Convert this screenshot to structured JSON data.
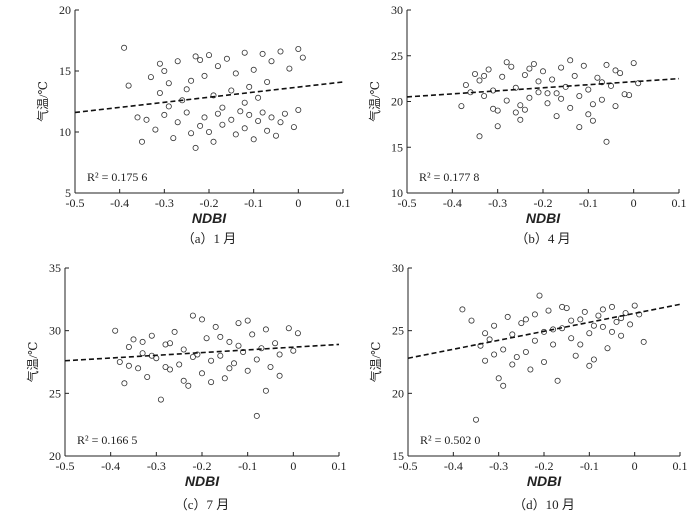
{
  "chart_data": [
    {
      "type": "scatter",
      "caption": "（a）1 月",
      "xlabel": "NDBI",
      "ylabel": "气温/℃",
      "xlim": [
        -0.5,
        0.1
      ],
      "ylim": [
        5,
        20
      ],
      "xticks": [
        -0.5,
        -0.4,
        -0.3,
        -0.2,
        -0.1,
        0,
        0.1
      ],
      "xtick_labels": [
        "-0.5",
        "-0.4",
        "-0.3",
        "-0.2",
        "-0.1",
        "0",
        "0.1"
      ],
      "yticks": [
        5,
        10,
        15,
        20
      ],
      "r2_label": "R² = 0.175 6",
      "trend": {
        "x": [
          -0.5,
          0.1
        ],
        "y": [
          11.6,
          14.1
        ]
      },
      "points": [
        [
          -0.39,
          16.9
        ],
        [
          -0.38,
          13.8
        ],
        [
          -0.36,
          11.2
        ],
        [
          -0.33,
          14.5
        ],
        [
          -0.31,
          13.2
        ],
        [
          -0.3,
          15.0
        ],
        [
          -0.29,
          14.0
        ],
        [
          -0.27,
          15.8
        ],
        [
          -0.25,
          13.5
        ],
        [
          -0.23,
          16.2
        ],
        [
          -0.22,
          15.9
        ],
        [
          -0.21,
          14.6
        ],
        [
          -0.2,
          16.3
        ],
        [
          -0.19,
          13.0
        ],
        [
          -0.18,
          15.4
        ],
        [
          -0.16,
          16.0
        ],
        [
          -0.14,
          14.8
        ],
        [
          -0.12,
          16.5
        ],
        [
          -0.1,
          15.1
        ],
        [
          -0.08,
          16.4
        ],
        [
          -0.06,
          15.8
        ],
        [
          -0.04,
          16.6
        ],
        [
          -0.02,
          15.2
        ],
        [
          0.0,
          16.8
        ],
        [
          0.01,
          16.1
        ],
        [
          -0.26,
          12.6
        ],
        [
          -0.17,
          12.0
        ],
        [
          -0.09,
          12.8
        ],
        [
          -0.34,
          11.0
        ],
        [
          -0.32,
          10.2
        ],
        [
          -0.3,
          11.4
        ],
        [
          -0.28,
          9.5
        ],
        [
          -0.27,
          10.8
        ],
        [
          -0.25,
          11.6
        ],
        [
          -0.24,
          9.9
        ],
        [
          -0.23,
          8.7
        ],
        [
          -0.22,
          10.5
        ],
        [
          -0.21,
          11.2
        ],
        [
          -0.2,
          10.0
        ],
        [
          -0.19,
          9.2
        ],
        [
          -0.18,
          11.5
        ],
        [
          -0.17,
          10.6
        ],
        [
          -0.15,
          11.0
        ],
        [
          -0.14,
          9.8
        ],
        [
          -0.13,
          11.7
        ],
        [
          -0.12,
          10.3
        ],
        [
          -0.11,
          11.4
        ],
        [
          -0.1,
          9.4
        ],
        [
          -0.09,
          10.9
        ],
        [
          -0.08,
          11.6
        ],
        [
          -0.07,
          10.1
        ],
        [
          -0.06,
          11.2
        ],
        [
          -0.05,
          9.7
        ],
        [
          -0.04,
          10.8
        ],
        [
          -0.03,
          11.5
        ],
        [
          -0.01,
          10.4
        ],
        [
          0.0,
          11.8
        ],
        [
          -0.35,
          9.2
        ],
        [
          -0.29,
          12.1
        ],
        [
          -0.12,
          12.4
        ],
        [
          -0.24,
          14.2
        ],
        [
          -0.15,
          13.4
        ],
        [
          -0.07,
          14.1
        ],
        [
          -0.31,
          15.6
        ],
        [
          -0.11,
          13.7
        ]
      ]
    },
    {
      "type": "scatter",
      "caption": "（b）4 月",
      "xlabel": "NDBI",
      "ylabel": "气温/℃",
      "xlim": [
        -0.5,
        0.1
      ],
      "ylim": [
        10,
        30
      ],
      "xticks": [
        -0.5,
        -0.4,
        -0.3,
        -0.2,
        -0.1,
        0,
        0.1
      ],
      "xtick_labels": [
        "-0.5",
        "-0.4",
        "-0.3",
        "-0.2",
        "-0.1",
        "0",
        "0.1"
      ],
      "yticks": [
        10,
        15,
        20,
        25,
        30
      ],
      "r2_label": "R² = 0.177 8",
      "trend": {
        "x": [
          -0.5,
          0.1
        ],
        "y": [
          20.5,
          22.5
        ]
      },
      "points": [
        [
          -0.38,
          19.5
        ],
        [
          -0.37,
          21.8
        ],
        [
          -0.35,
          23.0
        ],
        [
          -0.34,
          22.3
        ],
        [
          -0.33,
          20.6
        ],
        [
          -0.32,
          23.5
        ],
        [
          -0.31,
          21.2
        ],
        [
          -0.3,
          19.0
        ],
        [
          -0.29,
          22.7
        ],
        [
          -0.28,
          20.1
        ],
        [
          -0.27,
          23.8
        ],
        [
          -0.26,
          21.5
        ],
        [
          -0.25,
          19.6
        ],
        [
          -0.24,
          22.9
        ],
        [
          -0.23,
          20.4
        ],
        [
          -0.22,
          24.1
        ],
        [
          -0.21,
          21.0
        ],
        [
          -0.2,
          23.3
        ],
        [
          -0.19,
          19.8
        ],
        [
          -0.18,
          22.4
        ],
        [
          -0.17,
          20.9
        ],
        [
          -0.16,
          23.7
        ],
        [
          -0.15,
          21.6
        ],
        [
          -0.14,
          19.3
        ],
        [
          -0.13,
          22.8
        ],
        [
          -0.12,
          20.6
        ],
        [
          -0.11,
          23.9
        ],
        [
          -0.1,
          21.3
        ],
        [
          -0.09,
          19.7
        ],
        [
          -0.08,
          22.6
        ],
        [
          -0.07,
          20.2
        ],
        [
          -0.06,
          24.0
        ],
        [
          -0.05,
          21.7
        ],
        [
          -0.04,
          19.5
        ],
        [
          -0.03,
          23.1
        ],
        [
          -0.02,
          20.8
        ],
        [
          0.0,
          24.2
        ],
        [
          0.01,
          22.0
        ],
        [
          -0.34,
          16.2
        ],
        [
          -0.3,
          17.3
        ],
        [
          -0.25,
          18.0
        ],
        [
          -0.12,
          17.2
        ],
        [
          -0.06,
          15.6
        ],
        [
          -0.26,
          18.8
        ],
        [
          -0.17,
          18.4
        ],
        [
          -0.09,
          17.9
        ],
        [
          -0.36,
          21.0
        ],
        [
          -0.21,
          22.2
        ],
        [
          -0.14,
          24.5
        ],
        [
          -0.28,
          24.3
        ],
        [
          -0.19,
          20.9
        ],
        [
          -0.07,
          22.1
        ],
        [
          -0.31,
          19.2
        ],
        [
          -0.23,
          23.6
        ],
        [
          -0.1,
          18.6
        ],
        [
          -0.04,
          23.4
        ],
        [
          -0.16,
          20.3
        ],
        [
          -0.33,
          22.8
        ],
        [
          -0.24,
          19.1
        ],
        [
          -0.01,
          20.7
        ]
      ]
    },
    {
      "type": "scatter",
      "caption": "（c）7 月",
      "xlabel": "NDBI",
      "ylabel": "气温/℃",
      "xlim": [
        -0.5,
        0.1
      ],
      "ylim": [
        20,
        35
      ],
      "xticks": [
        -0.5,
        -0.4,
        -0.3,
        -0.2,
        -0.1,
        0,
        0.1
      ],
      "xtick_labels": [
        "-0.5",
        "-0.4",
        "-0.3",
        "-0.2",
        "-0.1",
        "0",
        "0.1"
      ],
      "yticks": [
        20,
        25,
        30,
        35
      ],
      "r2_label": "R² = 0.166 5",
      "trend": {
        "x": [
          -0.5,
          0.1
        ],
        "y": [
          27.6,
          28.9
        ]
      },
      "points": [
        [
          -0.39,
          30.0
        ],
        [
          -0.38,
          27.5
        ],
        [
          -0.37,
          25.8
        ],
        [
          -0.36,
          28.7
        ],
        [
          -0.35,
          29.3
        ],
        [
          -0.34,
          27.0
        ],
        [
          -0.33,
          28.2
        ],
        [
          -0.32,
          26.3
        ],
        [
          -0.31,
          29.6
        ],
        [
          -0.3,
          27.8
        ],
        [
          -0.29,
          24.5
        ],
        [
          -0.28,
          28.9
        ],
        [
          -0.27,
          26.9
        ],
        [
          -0.26,
          29.9
        ],
        [
          -0.25,
          27.3
        ],
        [
          -0.24,
          28.5
        ],
        [
          -0.23,
          25.6
        ],
        [
          -0.22,
          31.2
        ],
        [
          -0.21,
          28.1
        ],
        [
          -0.2,
          26.6
        ],
        [
          -0.19,
          29.4
        ],
        [
          -0.18,
          27.6
        ],
        [
          -0.17,
          30.3
        ],
        [
          -0.16,
          28.0
        ],
        [
          -0.15,
          26.2
        ],
        [
          -0.14,
          29.1
        ],
        [
          -0.13,
          27.4
        ],
        [
          -0.12,
          30.6
        ],
        [
          -0.11,
          28.3
        ],
        [
          -0.1,
          26.8
        ],
        [
          -0.09,
          29.7
        ],
        [
          -0.08,
          23.2
        ],
        [
          -0.07,
          28.6
        ],
        [
          -0.06,
          30.1
        ],
        [
          -0.05,
          27.1
        ],
        [
          -0.04,
          29.0
        ],
        [
          -0.03,
          26.4
        ],
        [
          -0.01,
          30.2
        ],
        [
          0.0,
          28.4
        ],
        [
          0.01,
          29.8
        ],
        [
          -0.06,
          25.2
        ],
        [
          -0.33,
          29.1
        ],
        [
          -0.27,
          29.0
        ],
        [
          -0.2,
          30.9
        ],
        [
          -0.14,
          27.0
        ],
        [
          -0.1,
          30.8
        ],
        [
          -0.24,
          26.0
        ],
        [
          -0.31,
          28.0
        ],
        [
          -0.16,
          29.5
        ],
        [
          -0.08,
          27.7
        ],
        [
          -0.36,
          27.2
        ],
        [
          -0.22,
          27.9
        ],
        [
          -0.12,
          28.8
        ],
        [
          -0.03,
          28.1
        ],
        [
          -0.28,
          27.1
        ],
        [
          -0.18,
          25.9
        ]
      ]
    },
    {
      "type": "scatter",
      "caption": "（d）10 月",
      "xlabel": "NDBI",
      "ylabel": "气温/℃",
      "xlim": [
        -0.5,
        0.1
      ],
      "ylim": [
        15,
        30
      ],
      "xticks": [
        -0.5,
        -0.4,
        -0.3,
        -0.2,
        -0.1,
        0,
        0.1
      ],
      "xtick_labels": [
        "-0.5",
        "-0.4",
        "-0.3",
        "-0.2",
        "-0.1",
        "0",
        "0.1"
      ],
      "yticks": [
        15,
        20,
        25,
        30
      ],
      "r2_label": "R² = 0.502 0",
      "trend": {
        "x": [
          -0.5,
          0.1
        ],
        "y": [
          22.8,
          27.1
        ]
      },
      "points": [
        [
          -0.38,
          26.7
        ],
        [
          -0.36,
          25.8
        ],
        [
          -0.35,
          17.9
        ],
        [
          -0.34,
          23.8
        ],
        [
          -0.33,
          22.6
        ],
        [
          -0.32,
          24.3
        ],
        [
          -0.31,
          25.4
        ],
        [
          -0.3,
          21.2
        ],
        [
          -0.29,
          23.5
        ],
        [
          -0.28,
          26.1
        ],
        [
          -0.27,
          24.7
        ],
        [
          -0.26,
          22.9
        ],
        [
          -0.25,
          25.6
        ],
        [
          -0.24,
          23.3
        ],
        [
          -0.23,
          21.9
        ],
        [
          -0.22,
          26.3
        ],
        [
          -0.21,
          27.8
        ],
        [
          -0.2,
          24.9
        ],
        [
          -0.19,
          26.6
        ],
        [
          -0.18,
          23.9
        ],
        [
          -0.17,
          21.0
        ],
        [
          -0.16,
          25.2
        ],
        [
          -0.15,
          26.8
        ],
        [
          -0.14,
          24.4
        ],
        [
          -0.13,
          23.0
        ],
        [
          -0.12,
          25.9
        ],
        [
          -0.11,
          26.5
        ],
        [
          -0.1,
          24.8
        ],
        [
          -0.09,
          22.7
        ],
        [
          -0.08,
          26.2
        ],
        [
          -0.07,
          25.3
        ],
        [
          -0.06,
          23.6
        ],
        [
          -0.05,
          26.9
        ],
        [
          -0.04,
          25.7
        ],
        [
          -0.03,
          24.6
        ],
        [
          -0.02,
          26.4
        ],
        [
          -0.01,
          25.5
        ],
        [
          0.0,
          27.0
        ],
        [
          0.01,
          26.3
        ],
        [
          0.02,
          24.1
        ],
        [
          -0.1,
          22.2
        ],
        [
          -0.29,
          20.6
        ],
        [
          -0.2,
          22.5
        ],
        [
          -0.24,
          25.9
        ],
        [
          -0.14,
          25.8
        ],
        [
          -0.33,
          24.8
        ],
        [
          -0.07,
          26.7
        ],
        [
          -0.18,
          25.1
        ],
        [
          -0.12,
          23.9
        ],
        [
          -0.27,
          22.3
        ],
        [
          -0.03,
          26.0
        ],
        [
          -0.16,
          26.9
        ],
        [
          -0.22,
          24.2
        ],
        [
          -0.09,
          25.4
        ],
        [
          -0.31,
          23.1
        ],
        [
          -0.05,
          24.9
        ]
      ]
    }
  ]
}
